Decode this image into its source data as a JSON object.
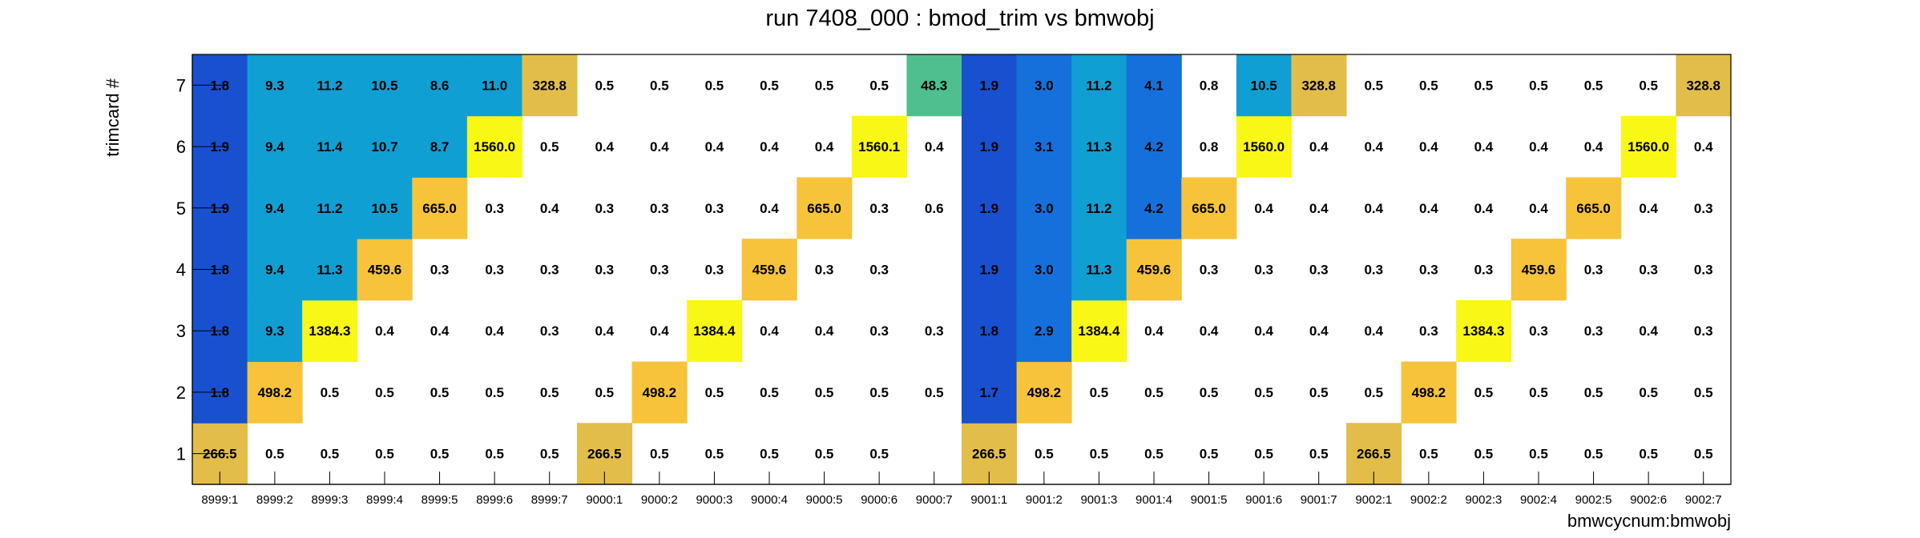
{
  "chart_data": {
    "type": "heatmap",
    "title": "run 7408_000 : bmod_trim vs bmwobj",
    "xlabel": "bmwcycnum:bmwobj",
    "ylabel": "trimcard #",
    "x_categories": [
      "8999:1",
      "8999:2",
      "8999:3",
      "8999:4",
      "8999:5",
      "8999:6",
      "8999:7",
      "9000:1",
      "9000:2",
      "9000:3",
      "9000:4",
      "9000:5",
      "9000:6",
      "9000:7",
      "9001:1",
      "9001:2",
      "9001:3",
      "9001:4",
      "9001:5",
      "9001:6",
      "9001:7",
      "9002:1",
      "9002:2",
      "9002:3",
      "9002:4",
      "9002:5",
      "9002:6",
      "9002:7"
    ],
    "y_categories": [
      "1",
      "2",
      "3",
      "4",
      "5",
      "6",
      "7"
    ],
    "values": [
      [
        266.5,
        0.5,
        0.5,
        0.5,
        0.5,
        0.5,
        0.5,
        266.5,
        0.5,
        0.5,
        0.5,
        0.5,
        0.5,
        null,
        266.5,
        0.5,
        0.5,
        0.5,
        0.5,
        0.5,
        0.5,
        266.5,
        0.5,
        0.5,
        0.5,
        0.5,
        0.5,
        0.5
      ],
      [
        1.8,
        498.2,
        0.5,
        0.5,
        0.5,
        0.5,
        0.5,
        0.5,
        498.2,
        0.5,
        0.5,
        0.5,
        0.5,
        0.5,
        1.7,
        498.2,
        0.5,
        0.5,
        0.5,
        0.5,
        0.5,
        0.5,
        498.2,
        0.5,
        0.5,
        0.5,
        0.5,
        0.5
      ],
      [
        1.8,
        9.3,
        1384.3,
        0.4,
        0.4,
        0.4,
        0.3,
        0.4,
        0.4,
        1384.4,
        0.4,
        0.4,
        0.3,
        0.3,
        1.8,
        2.9,
        1384.4,
        0.4,
        0.4,
        0.4,
        0.4,
        0.4,
        0.3,
        1384.3,
        0.3,
        0.3,
        0.4,
        0.3
      ],
      [
        1.8,
        9.4,
        11.3,
        459.6,
        0.3,
        0.3,
        0.3,
        0.3,
        0.3,
        0.3,
        459.6,
        0.3,
        0.3,
        null,
        1.9,
        3.0,
        11.3,
        459.6,
        0.3,
        0.3,
        0.3,
        0.3,
        0.3,
        0.3,
        459.6,
        0.3,
        0.3,
        0.3
      ],
      [
        1.9,
        9.4,
        11.2,
        10.5,
        665.0,
        0.3,
        0.4,
        0.3,
        0.3,
        0.3,
        0.4,
        665.0,
        0.3,
        0.6,
        1.9,
        3.0,
        11.2,
        4.2,
        665.0,
        0.4,
        0.4,
        0.4,
        0.4,
        0.4,
        0.4,
        665.0,
        0.4,
        0.3
      ],
      [
        1.9,
        9.4,
        11.4,
        10.7,
        8.7,
        1560.0,
        0.5,
        0.4,
        0.4,
        0.4,
        0.4,
        0.4,
        1560.1,
        0.4,
        1.9,
        3.1,
        11.3,
        4.2,
        0.8,
        1560.0,
        0.4,
        0.4,
        0.4,
        0.4,
        0.4,
        0.4,
        1560.0,
        0.4
      ],
      [
        1.8,
        9.3,
        11.2,
        10.5,
        8.6,
        11.0,
        328.8,
        0.5,
        0.5,
        0.5,
        0.5,
        0.5,
        0.5,
        48.3,
        1.9,
        3.0,
        11.2,
        4.1,
        0.8,
        10.5,
        328.8,
        0.5,
        0.5,
        0.5,
        0.5,
        0.5,
        0.5,
        328.8
      ]
    ],
    "color_scale": "rainbow",
    "colors": {
      "blue_low": "#1850cf",
      "blue_mid": "#1570dc",
      "cyan": "#109fd3",
      "green": "#4fbf8f",
      "amber": "#e3bd4a",
      "gold": "#f6c33b",
      "yellow": "#f9f716"
    }
  }
}
